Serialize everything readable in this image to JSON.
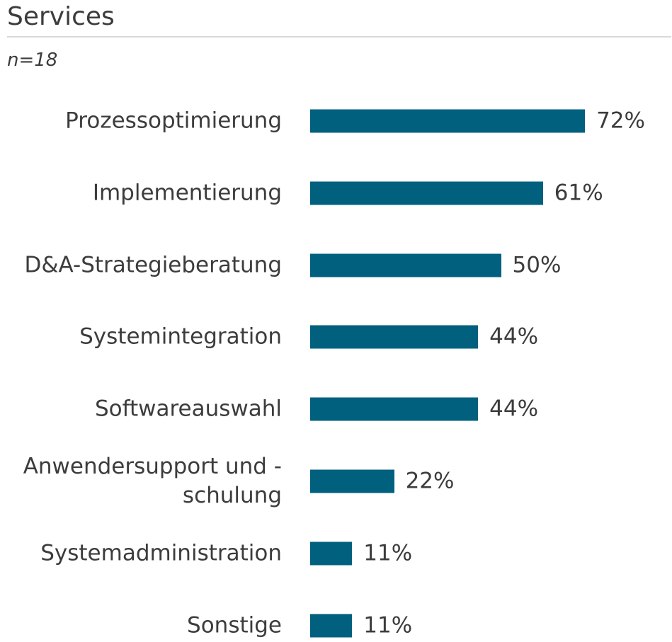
{
  "colors": {
    "bar": "#00607e",
    "text": "#3c3c3c",
    "rule": "#d9d9d9"
  },
  "chart_data": {
    "type": "bar",
    "orientation": "horizontal",
    "title": "Services",
    "subtitle": "n=18",
    "categories": [
      "Prozessoptimierung",
      "Implementierung",
      "D&A-Strategieberatung",
      "Systemintegration",
      "Softwareauswahl",
      "Anwendersupport und -schulung",
      "Systemadministration",
      "Sonstige"
    ],
    "values": [
      72,
      61,
      50,
      44,
      44,
      22,
      11,
      11
    ],
    "value_labels": [
      "72%",
      "61%",
      "50%",
      "44%",
      "44%",
      "22%",
      "11%",
      "11%"
    ],
    "xlim": [
      0,
      100
    ],
    "unit": "%",
    "grid": false,
    "legend": "none"
  }
}
